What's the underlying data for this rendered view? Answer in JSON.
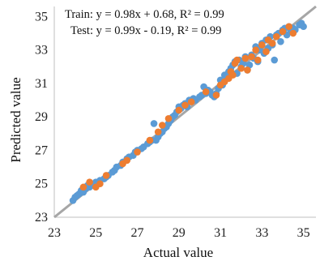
{
  "chart_data": {
    "type": "scatter",
    "xlabel": "Actual value",
    "ylabel": "Predicted value",
    "xlim": [
      23,
      35.6
    ],
    "ylim": [
      23,
      35.6
    ],
    "xticks": [
      23,
      25,
      27,
      29,
      31,
      33,
      35
    ],
    "yticks": [
      23,
      25,
      27,
      29,
      31,
      33,
      35
    ],
    "grid": false,
    "annotations": [
      "Train: y = 0.98x + 0.68, R² = 0.99",
      "Test: y = 0.99x - 0.19, R² = 0.99"
    ],
    "reference_line": {
      "from": [
        23,
        23
      ],
      "to": [
        35.6,
        35.6
      ],
      "color": "#a6a6a6"
    },
    "series": [
      {
        "color": "#5b9bd5",
        "points": [
          [
            23.9,
            24.0
          ],
          [
            24.0,
            24.2
          ],
          [
            24.1,
            24.3
          ],
          [
            24.2,
            24.4
          ],
          [
            24.3,
            24.6
          ],
          [
            24.4,
            24.5
          ],
          [
            24.5,
            24.7
          ],
          [
            24.6,
            24.9
          ],
          [
            24.7,
            24.8
          ],
          [
            24.8,
            25.0
          ],
          [
            24.9,
            24.9
          ],
          [
            25.0,
            25.1
          ],
          [
            25.1,
            25.0
          ],
          [
            25.2,
            25.2
          ],
          [
            25.4,
            25.3
          ],
          [
            25.5,
            25.4
          ],
          [
            25.6,
            25.5
          ],
          [
            25.8,
            25.7
          ],
          [
            25.9,
            25.8
          ],
          [
            26.0,
            26.0
          ],
          [
            26.2,
            26.1
          ],
          [
            26.3,
            26.3
          ],
          [
            26.5,
            26.5
          ],
          [
            26.6,
            26.6
          ],
          [
            26.8,
            26.7
          ],
          [
            26.9,
            26.9
          ],
          [
            27.0,
            27.0
          ],
          [
            27.2,
            27.1
          ],
          [
            27.3,
            27.2
          ],
          [
            27.5,
            27.4
          ],
          [
            27.6,
            27.5
          ],
          [
            27.7,
            27.6
          ],
          [
            27.8,
            28.6
          ],
          [
            27.9,
            27.6
          ],
          [
            28.0,
            27.8
          ],
          [
            28.1,
            28.0
          ],
          [
            28.2,
            28.1
          ],
          [
            28.3,
            28.3
          ],
          [
            28.4,
            28.4
          ],
          [
            28.5,
            28.6
          ],
          [
            28.6,
            28.8
          ],
          [
            28.7,
            29.0
          ],
          [
            28.8,
            29.1
          ],
          [
            28.9,
            29.3
          ],
          [
            29.0,
            29.6
          ],
          [
            29.1,
            29.5
          ],
          [
            29.2,
            29.7
          ],
          [
            29.3,
            29.8
          ],
          [
            29.4,
            29.6
          ],
          [
            29.5,
            30.0
          ],
          [
            29.6,
            29.9
          ],
          [
            29.7,
            30.1
          ],
          [
            29.8,
            30.0
          ],
          [
            30.0,
            30.2
          ],
          [
            30.1,
            30.3
          ],
          [
            30.2,
            30.8
          ],
          [
            30.3,
            30.4
          ],
          [
            30.4,
            30.6
          ],
          [
            30.5,
            30.5
          ],
          [
            30.6,
            30.3
          ],
          [
            30.7,
            30.2
          ],
          [
            30.8,
            30.4
          ],
          [
            30.9,
            30.7
          ],
          [
            31.0,
            31.2
          ],
          [
            31.1,
            30.9
          ],
          [
            31.2,
            31.5
          ],
          [
            31.3,
            31.4
          ],
          [
            31.4,
            31.7
          ],
          [
            31.5,
            31.9
          ],
          [
            31.6,
            32.1
          ],
          [
            31.7,
            32.3
          ],
          [
            31.8,
            31.6
          ],
          [
            31.9,
            32.4
          ],
          [
            32.0,
            32.0
          ],
          [
            32.1,
            32.2
          ],
          [
            32.2,
            32.6
          ],
          [
            32.3,
            31.8
          ],
          [
            32.4,
            32.1
          ],
          [
            32.5,
            32.7
          ],
          [
            32.6,
            32.5
          ],
          [
            32.7,
            33.2
          ],
          [
            32.8,
            32.3
          ],
          [
            32.9,
            33.0
          ],
          [
            33.0,
            33.4
          ],
          [
            33.1,
            32.8
          ],
          [
            33.2,
            33.6
          ],
          [
            33.3,
            33.1
          ],
          [
            33.4,
            33.8
          ],
          [
            33.5,
            33.3
          ],
          [
            33.6,
            32.4
          ],
          [
            33.7,
            33.9
          ],
          [
            33.8,
            34.0
          ],
          [
            33.9,
            33.5
          ],
          [
            34.0,
            34.2
          ],
          [
            34.1,
            34.3
          ],
          [
            34.2,
            33.9
          ],
          [
            34.3,
            34.4
          ],
          [
            34.4,
            34.1
          ],
          [
            34.5,
            34.3
          ],
          [
            34.6,
            34.2
          ],
          [
            34.8,
            34.5
          ],
          [
            34.9,
            34.6
          ],
          [
            35.0,
            34.4
          ]
        ]
      },
      {
        "color": "#ed7d31",
        "points": [
          [
            24.4,
            24.8
          ],
          [
            24.7,
            25.1
          ],
          [
            25.0,
            24.8
          ],
          [
            25.2,
            25.0
          ],
          [
            25.5,
            25.5
          ],
          [
            26.3,
            26.2
          ],
          [
            26.5,
            26.4
          ],
          [
            27.0,
            26.9
          ],
          [
            27.6,
            27.6
          ],
          [
            28.0,
            28.1
          ],
          [
            28.2,
            28.5
          ],
          [
            28.5,
            28.9
          ],
          [
            29.0,
            29.4
          ],
          [
            29.3,
            29.7
          ],
          [
            29.6,
            29.9
          ],
          [
            30.3,
            30.5
          ],
          [
            30.8,
            30.3
          ],
          [
            31.0,
            30.9
          ],
          [
            31.2,
            31.1
          ],
          [
            31.4,
            31.3
          ],
          [
            31.5,
            31.7
          ],
          [
            31.6,
            31.5
          ],
          [
            31.7,
            32.2
          ],
          [
            31.8,
            32.4
          ],
          [
            32.0,
            31.9
          ],
          [
            32.2,
            32.5
          ],
          [
            32.3,
            31.8
          ],
          [
            32.5,
            32.6
          ],
          [
            32.7,
            33.0
          ],
          [
            32.8,
            32.4
          ],
          [
            33.0,
            33.3
          ],
          [
            33.2,
            32.9
          ],
          [
            33.3,
            33.6
          ],
          [
            33.5,
            33.4
          ],
          [
            33.7,
            33.8
          ],
          [
            34.0,
            34.1
          ],
          [
            34.3,
            34.4
          ],
          [
            34.5,
            34.0
          ]
        ]
      }
    ]
  }
}
